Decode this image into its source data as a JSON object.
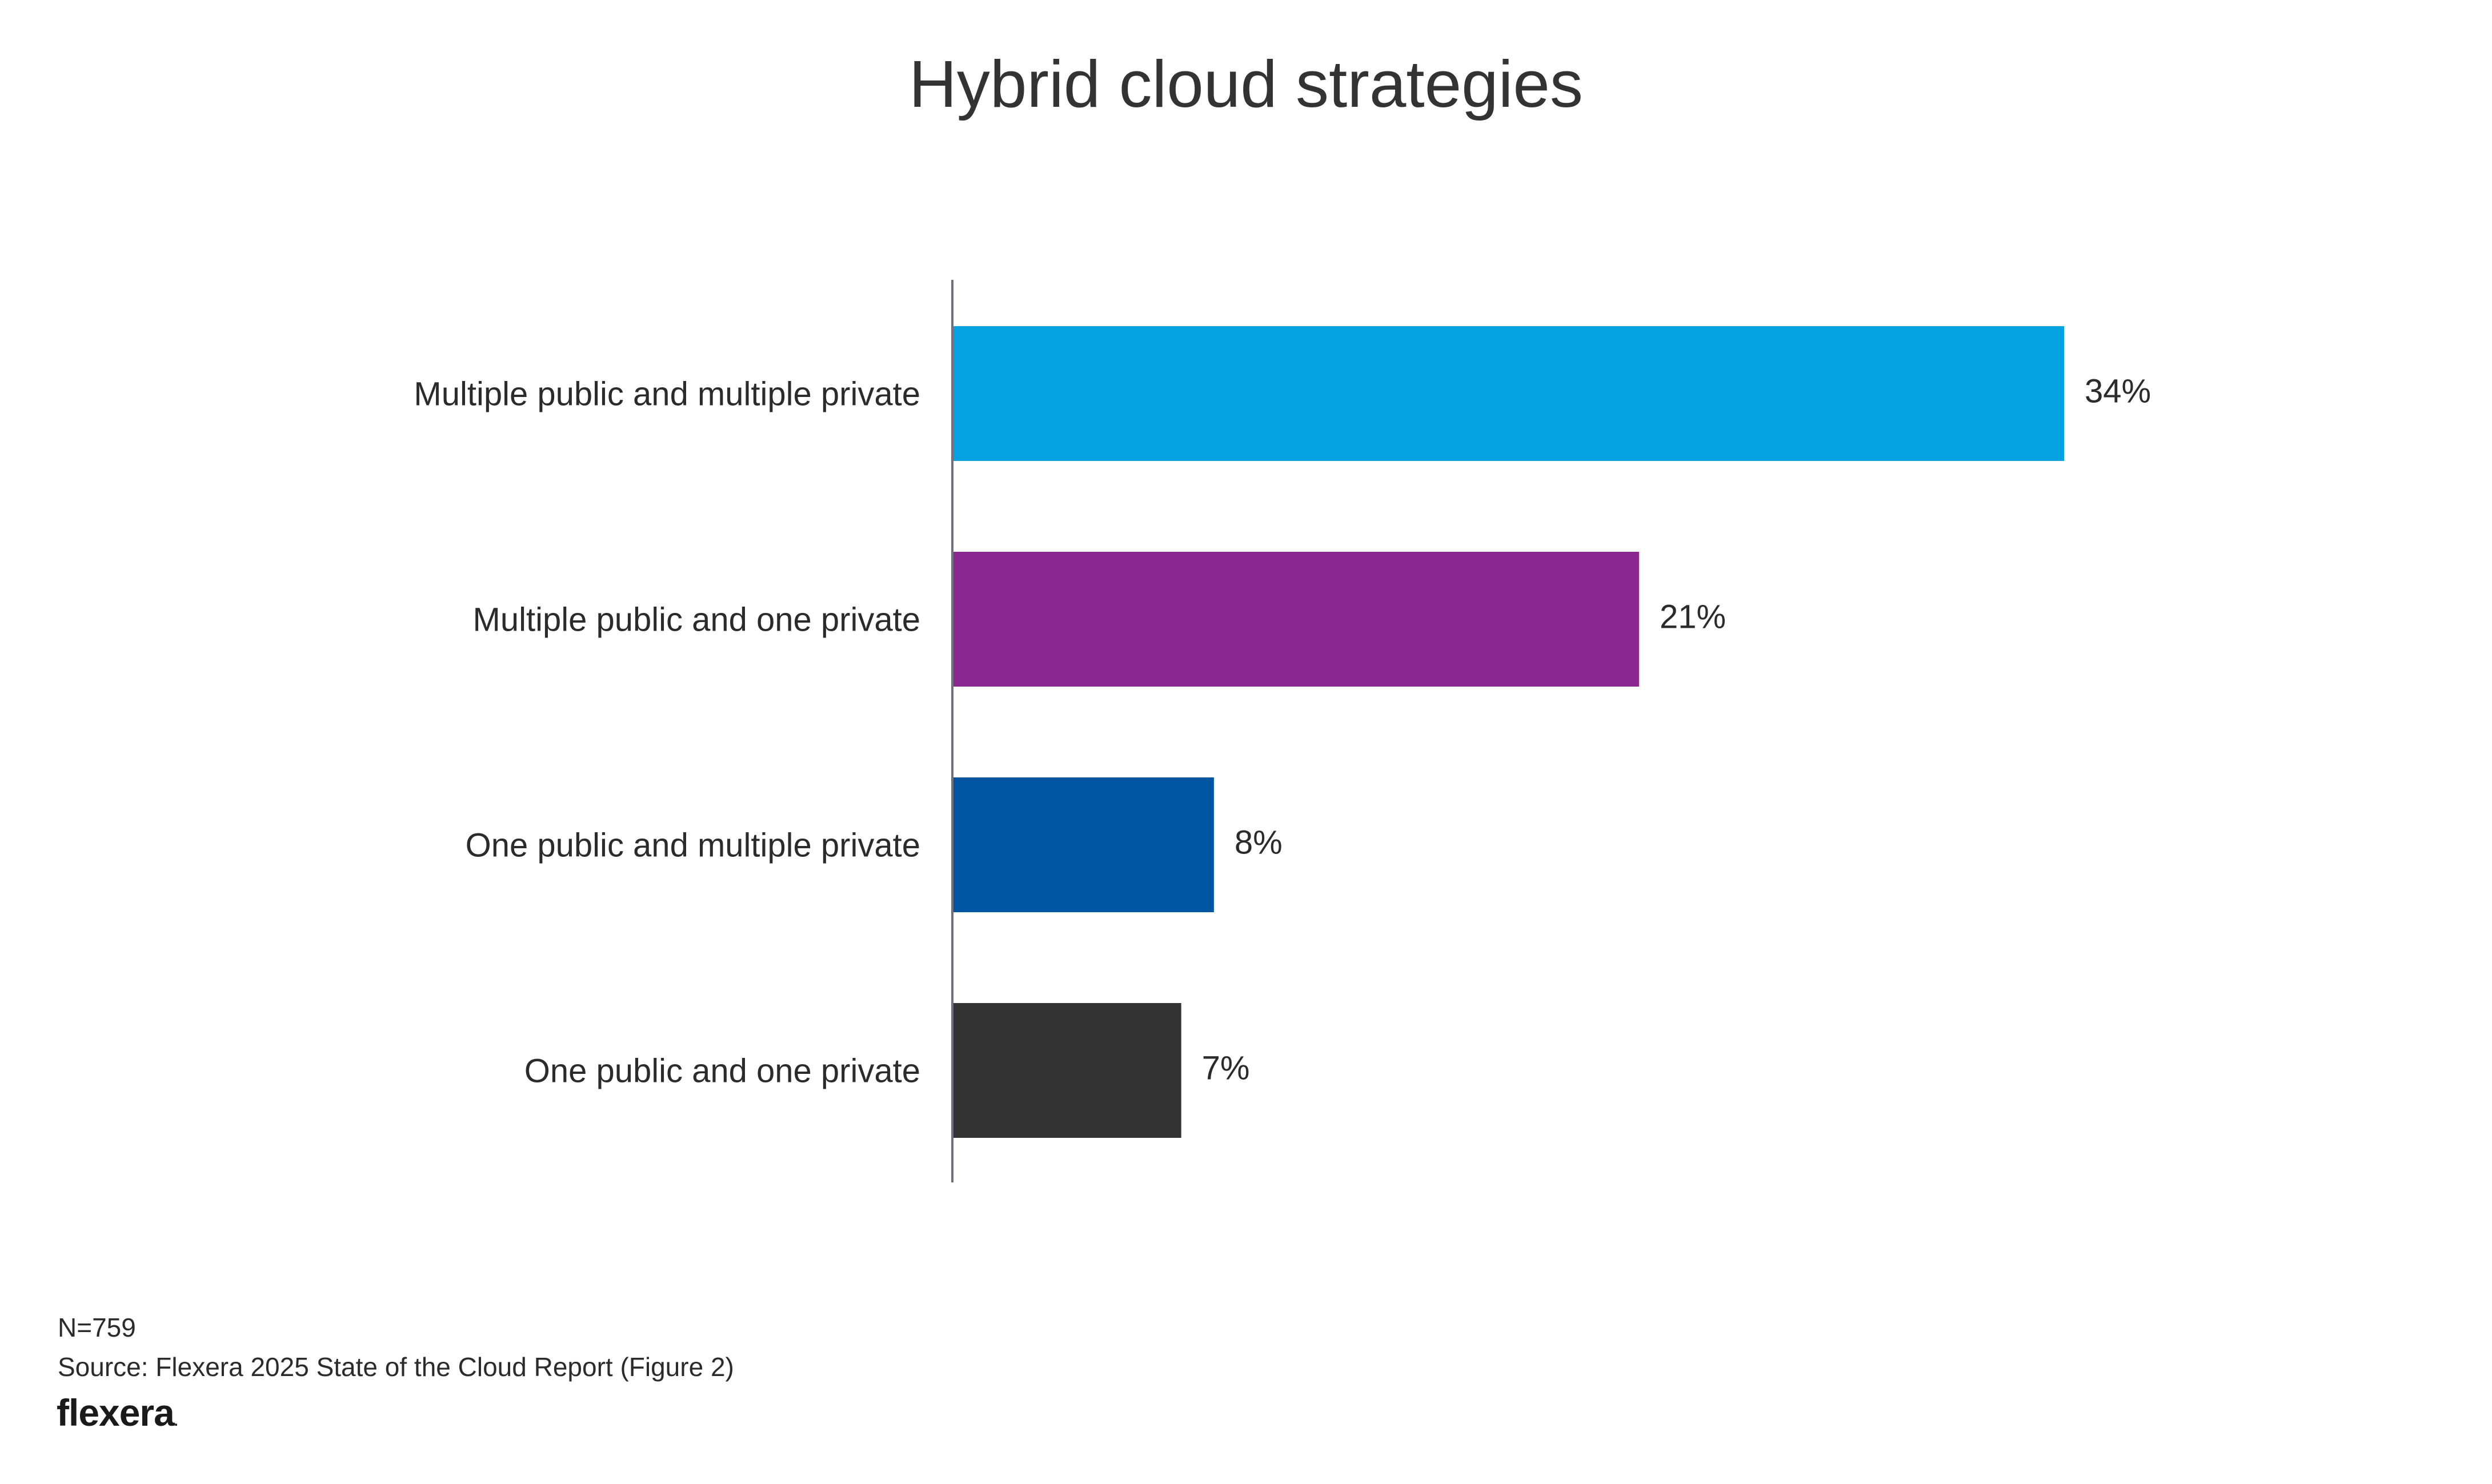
{
  "chart_data": {
    "type": "bar",
    "orientation": "horizontal",
    "title": "Hybrid cloud strategies",
    "categories": [
      "Multiple public and multiple private",
      "Multiple public and one private",
      "One public and multiple private",
      "One public and one private"
    ],
    "values": [
      34,
      21,
      8,
      7
    ],
    "value_labels": [
      "34%",
      "21%",
      "8%",
      "7%"
    ],
    "colors": [
      "#04a2e0",
      "#8b288f",
      "#0055a2",
      "#333333"
    ],
    "unit": "%",
    "grid": false,
    "legend": "none"
  },
  "footer": {
    "n": "N=759",
    "source": "Source: Flexera 2025 State of the Cloud Report (Figure 2)"
  },
  "brand": {
    "logo_text": "flexera",
    "logo_dot": "."
  }
}
